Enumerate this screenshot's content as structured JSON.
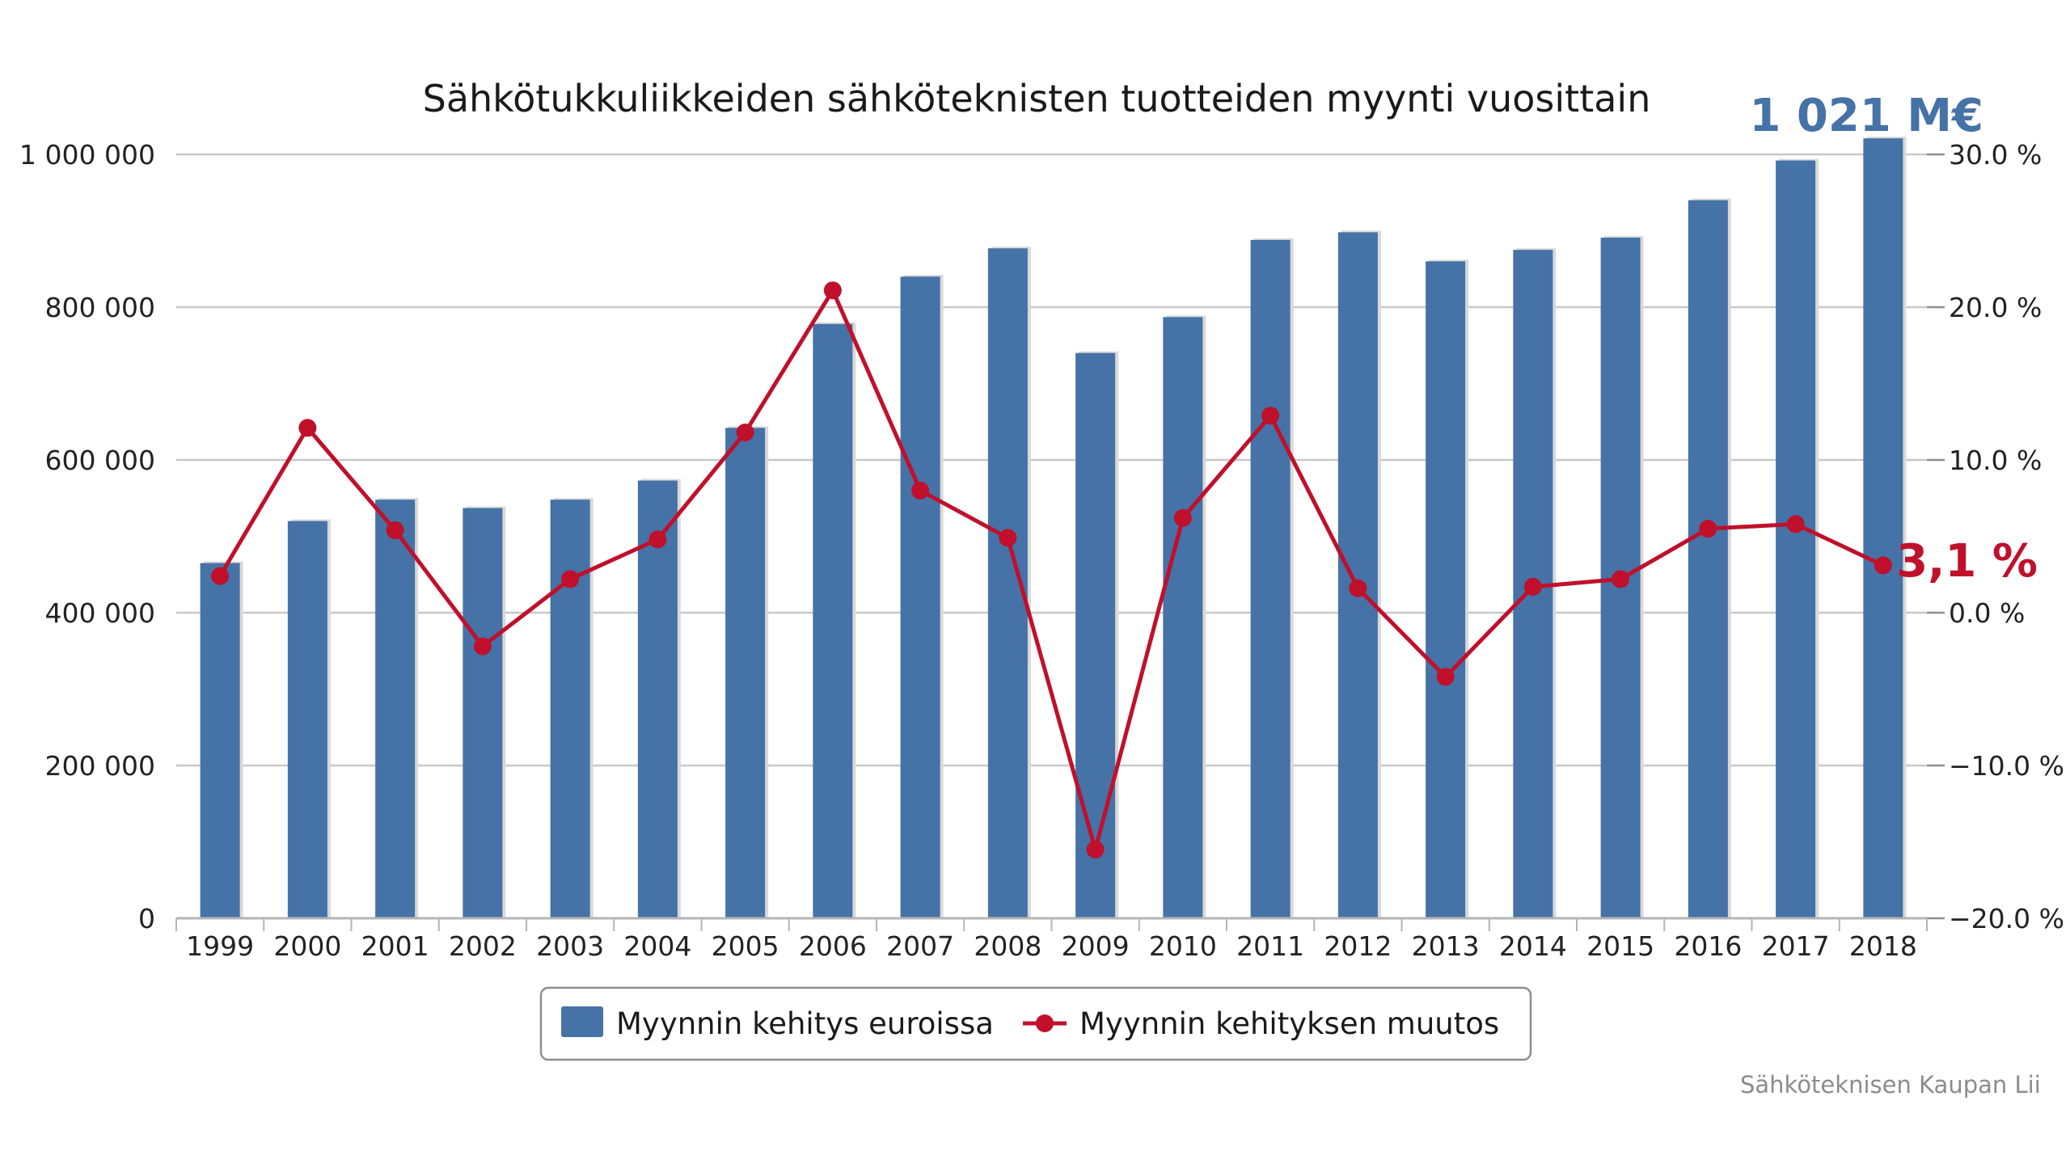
{
  "colors": {
    "bar": "#4572A7",
    "line": "#C0102B",
    "grid": "#C8C8C8",
    "total_callout": "#4572A7",
    "last_callout": "#C0102B"
  },
  "chart_data": {
    "type": "bar",
    "title": "Sähkötukkuliikkeiden sähköteknisten tuotteiden myynti vuosittain",
    "categories": [
      "1999",
      "2000",
      "2001",
      "2002",
      "2003",
      "2004",
      "2005",
      "2006",
      "2007",
      "2008",
      "2009",
      "2010",
      "2011",
      "2012",
      "2013",
      "2014",
      "2015",
      "2016",
      "2017",
      "2018"
    ],
    "series": [
      {
        "name": "Myynnin kehitys euroissa",
        "type": "bar",
        "axis": "left",
        "values": [
          465000,
          520000,
          548000,
          537000,
          548000,
          573000,
          642000,
          778000,
          840000,
          877000,
          740000,
          787000,
          888000,
          898000,
          860000,
          875000,
          891000,
          940000,
          992000,
          1021000
        ]
      },
      {
        "name": "Myynnin kehityksen muutos",
        "type": "line",
        "axis": "right",
        "values": [
          2.4,
          12.1,
          5.4,
          -2.2,
          2.2,
          4.8,
          11.8,
          21.1,
          8.0,
          4.9,
          -15.5,
          6.2,
          12.9,
          1.6,
          -4.2,
          1.7,
          2.2,
          5.5,
          5.8,
          3.1
        ]
      }
    ],
    "y_left": {
      "ylim": [
        0,
        1000000
      ],
      "ticks": [
        0,
        200000,
        400000,
        600000,
        800000,
        1000000
      ],
      "tick_labels": [
        "0",
        "200 000",
        "400 000",
        "600 000",
        "800 000",
        "1 000 000"
      ]
    },
    "y_right": {
      "ylim": [
        -20,
        30
      ],
      "ticks": [
        -20,
        -10,
        0,
        10,
        20,
        30
      ],
      "tick_labels": [
        "−20.0 %",
        "−10.0 %",
        "0.0 %",
        "10.0 %",
        "20.0 %",
        "30.0 %"
      ]
    },
    "grid": true,
    "legend_position": "bottom-center",
    "annotations": {
      "total_last": "1 021 M€",
      "change_last": "3,1 %"
    },
    "source": "Sähköteknisen Kaupan Lii"
  }
}
